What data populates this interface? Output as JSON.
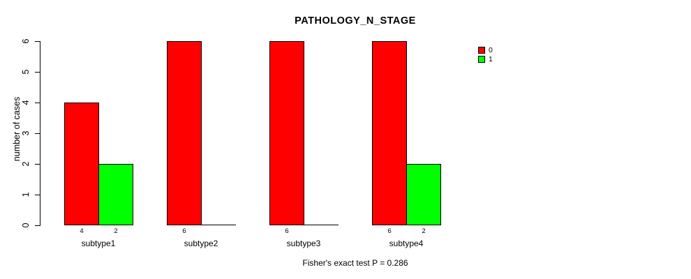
{
  "chart_data": {
    "type": "bar",
    "title": "PATHOLOGY_N_STAGE",
    "ylabel": "number of cases",
    "xlabel": "",
    "categories": [
      "subtype1",
      "subtype2",
      "subtype3",
      "subtype4"
    ],
    "series": [
      {
        "name": "0",
        "color": "#ff0000",
        "values": [
          4,
          6,
          6,
          6
        ]
      },
      {
        "name": "1",
        "color": "#00ff00",
        "values": [
          2,
          0,
          0,
          2
        ]
      }
    ],
    "ylim": [
      0,
      6
    ],
    "yticks": [
      0,
      1,
      2,
      3,
      4,
      5,
      6
    ],
    "bar_value_labels": [
      [
        "4",
        "2"
      ],
      [
        "6",
        ""
      ],
      [
        "6",
        ""
      ],
      [
        "6",
        "2"
      ]
    ],
    "grid": false,
    "legend_position": "right",
    "axis_color": "#000000",
    "background_color": "#ffffff",
    "annotation": "Fisher's exact test P = 0.286"
  }
}
